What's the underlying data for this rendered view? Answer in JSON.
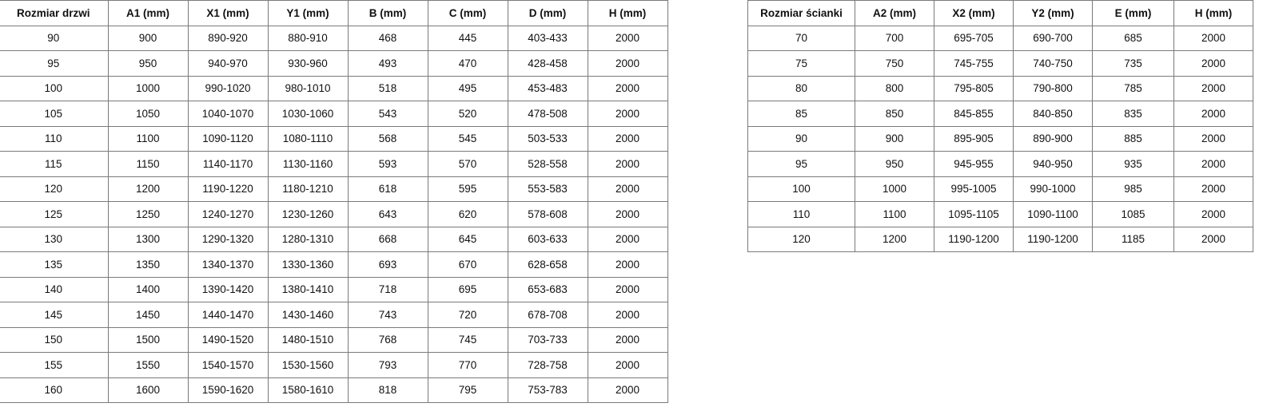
{
  "doors_table": {
    "headers": [
      "Rozmiar drzwi",
      "A1 (mm)",
      "X1 (mm)",
      "Y1 (mm)",
      "B (mm)",
      "C (mm)",
      "D (mm)",
      "H (mm)"
    ],
    "rows": [
      [
        "90",
        "900",
        "890-920",
        "880-910",
        "468",
        "445",
        "403-433",
        "2000"
      ],
      [
        "95",
        "950",
        "940-970",
        "930-960",
        "493",
        "470",
        "428-458",
        "2000"
      ],
      [
        "100",
        "1000",
        "990-1020",
        "980-1010",
        "518",
        "495",
        "453-483",
        "2000"
      ],
      [
        "105",
        "1050",
        "1040-1070",
        "1030-1060",
        "543",
        "520",
        "478-508",
        "2000"
      ],
      [
        "110",
        "1100",
        "1090-1120",
        "1080-1110",
        "568",
        "545",
        "503-533",
        "2000"
      ],
      [
        "115",
        "1150",
        "1140-1170",
        "1130-1160",
        "593",
        "570",
        "528-558",
        "2000"
      ],
      [
        "120",
        "1200",
        "1190-1220",
        "1180-1210",
        "618",
        "595",
        "553-583",
        "2000"
      ],
      [
        "125",
        "1250",
        "1240-1270",
        "1230-1260",
        "643",
        "620",
        "578-608",
        "2000"
      ],
      [
        "130",
        "1300",
        "1290-1320",
        "1280-1310",
        "668",
        "645",
        "603-633",
        "2000"
      ],
      [
        "135",
        "1350",
        "1340-1370",
        "1330-1360",
        "693",
        "670",
        "628-658",
        "2000"
      ],
      [
        "140",
        "1400",
        "1390-1420",
        "1380-1410",
        "718",
        "695",
        "653-683",
        "2000"
      ],
      [
        "145",
        "1450",
        "1440-1470",
        "1430-1460",
        "743",
        "720",
        "678-708",
        "2000"
      ],
      [
        "150",
        "1500",
        "1490-1520",
        "1480-1510",
        "768",
        "745",
        "703-733",
        "2000"
      ],
      [
        "155",
        "1550",
        "1540-1570",
        "1530-1560",
        "793",
        "770",
        "728-758",
        "2000"
      ],
      [
        "160",
        "1600",
        "1590-1620",
        "1580-1610",
        "818",
        "795",
        "753-783",
        "2000"
      ]
    ]
  },
  "wall_table": {
    "headers": [
      "Rozmiar ścianki",
      "A2 (mm)",
      "X2 (mm)",
      "Y2 (mm)",
      "E (mm)",
      "H (mm)"
    ],
    "rows": [
      [
        "70",
        "700",
        "695-705",
        "690-700",
        "685",
        "2000"
      ],
      [
        "75",
        "750",
        "745-755",
        "740-750",
        "735",
        "2000"
      ],
      [
        "80",
        "800",
        "795-805",
        "790-800",
        "785",
        "2000"
      ],
      [
        "85",
        "850",
        "845-855",
        "840-850",
        "835",
        "2000"
      ],
      [
        "90",
        "900",
        "895-905",
        "890-900",
        "885",
        "2000"
      ],
      [
        "95",
        "950",
        "945-955",
        "940-950",
        "935",
        "2000"
      ],
      [
        "100",
        "1000",
        "995-1005",
        "990-1000",
        "985",
        "2000"
      ],
      [
        "110",
        "1100",
        "1095-1105",
        "1090-1100",
        "1085",
        "2000"
      ],
      [
        "120",
        "1200",
        "1190-1200",
        "1190-1200",
        "1185",
        "2000"
      ]
    ]
  }
}
